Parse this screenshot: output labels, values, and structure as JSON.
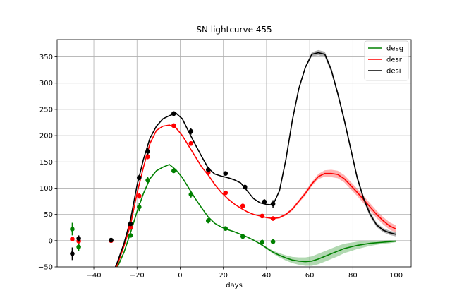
{
  "chart_data": {
    "type": "line",
    "title": "SN lightcurve 455",
    "xlabel": "days",
    "ylabel": "",
    "xlim": [
      -57,
      107
    ],
    "ylim": [
      -50,
      383
    ],
    "xticks": [
      -40,
      -20,
      0,
      20,
      40,
      60,
      80,
      100
    ],
    "yticks": [
      -50,
      0,
      50,
      100,
      150,
      200,
      250,
      300,
      350
    ],
    "grid": true,
    "legend_position": "top-right",
    "series": [
      {
        "name": "desg",
        "color": "#008000",
        "model": {
          "x": [
            -32,
            -29,
            -26,
            -23,
            -20,
            -17,
            -14,
            -11,
            -8,
            -5,
            -2,
            1,
            4,
            7,
            10,
            13,
            16,
            19,
            22,
            25,
            28,
            31,
            34,
            37,
            40,
            43,
            46,
            49,
            52,
            55,
            58,
            61,
            64,
            67,
            70,
            73,
            76,
            79,
            82,
            85,
            88,
            91,
            94,
            97,
            100
          ],
          "y": [
            -75,
            -50,
            -22,
            15,
            55,
            90,
            118,
            133,
            140,
            145,
            135,
            120,
            100,
            80,
            62,
            45,
            33,
            26,
            21,
            17,
            12,
            7,
            1,
            -6,
            -14,
            -22,
            -28,
            -33,
            -37,
            -39,
            -40,
            -39,
            -35,
            -30,
            -25,
            -20,
            -15,
            -12,
            -9,
            -7,
            -5,
            -4,
            -3,
            -2,
            -1
          ],
          "band": [
            0,
            0,
            0,
            0,
            0,
            0,
            0,
            0,
            0,
            0,
            0,
            0,
            0,
            0,
            0,
            0,
            0,
            0,
            0,
            0,
            0,
            0,
            0,
            1,
            2,
            3,
            4,
            5,
            6,
            7,
            8,
            9,
            10,
            10,
            10,
            10,
            9,
            8,
            7,
            6,
            5,
            4,
            3,
            3,
            2
          ]
        },
        "points": [
          {
            "x": -50,
            "y": 22,
            "err": 12
          },
          {
            "x": -47,
            "y": -12,
            "err": 8
          },
          {
            "x": -23,
            "y": 10,
            "err": 4
          },
          {
            "x": -19,
            "y": 64,
            "err": 8
          },
          {
            "x": -15,
            "y": 115,
            "err": 6
          },
          {
            "x": -3,
            "y": 133,
            "err": 4
          },
          {
            "x": 5,
            "y": 88,
            "err": 6
          },
          {
            "x": 13,
            "y": 38,
            "err": 5
          },
          {
            "x": 21,
            "y": 23,
            "err": 3
          },
          {
            "x": 29,
            "y": 8,
            "err": 3
          },
          {
            "x": 38,
            "y": -3,
            "err": 5
          },
          {
            "x": 43,
            "y": -2,
            "err": 5
          }
        ]
      },
      {
        "name": "desr",
        "color": "#ff0000",
        "model": {
          "x": [
            -32,
            -29,
            -26,
            -23,
            -20,
            -17,
            -14,
            -11,
            -8,
            -5,
            -2,
            1,
            4,
            7,
            10,
            13,
            16,
            19,
            22,
            25,
            28,
            31,
            34,
            37,
            40,
            43,
            46,
            49,
            52,
            55,
            58,
            61,
            64,
            67,
            70,
            73,
            76,
            79,
            82,
            85,
            88,
            91,
            94,
            97,
            100
          ],
          "y": [
            -70,
            -45,
            -10,
            30,
            90,
            140,
            185,
            210,
            218,
            220,
            215,
            200,
            180,
            160,
            140,
            125,
            107,
            92,
            80,
            70,
            62,
            55,
            50,
            47,
            44,
            42,
            44,
            50,
            60,
            75,
            90,
            108,
            122,
            128,
            128,
            126,
            118,
            105,
            92,
            78,
            64,
            50,
            38,
            28,
            22
          ],
          "band": [
            0,
            0,
            0,
            0,
            0,
            0,
            0,
            0,
            0,
            0,
            0,
            0,
            0,
            0,
            0,
            0,
            0,
            0,
            0,
            0,
            0,
            0,
            0,
            1,
            1,
            1,
            2,
            2,
            3,
            3,
            4,
            4,
            5,
            6,
            7,
            7,
            7,
            7,
            7,
            7,
            7,
            7,
            7,
            7,
            7
          ]
        },
        "points": [
          {
            "x": -50,
            "y": 3,
            "err": 4
          },
          {
            "x": -47,
            "y": -1,
            "err": 4
          },
          {
            "x": -32,
            "y": 0,
            "err": 3
          },
          {
            "x": -23,
            "y": 25,
            "err": 4
          },
          {
            "x": -19,
            "y": 85,
            "err": 5
          },
          {
            "x": -15,
            "y": 160,
            "err": 5
          },
          {
            "x": -3,
            "y": 219,
            "err": 4
          },
          {
            "x": 5,
            "y": 185,
            "err": 4
          },
          {
            "x": 13,
            "y": 130,
            "err": 5
          },
          {
            "x": 21,
            "y": 91,
            "err": 3
          },
          {
            "x": 29,
            "y": 66,
            "err": 3
          },
          {
            "x": 38,
            "y": 47,
            "err": 3
          },
          {
            "x": 43,
            "y": 42,
            "err": 3
          }
        ]
      },
      {
        "name": "desi",
        "color": "#000000",
        "model": {
          "x": [
            -32,
            -29,
            -26,
            -23,
            -20,
            -17,
            -14,
            -11,
            -8,
            -5,
            -2,
            1,
            4,
            7,
            10,
            13,
            16,
            19,
            22,
            25,
            28,
            31,
            34,
            37,
            40,
            43,
            46,
            49,
            52,
            55,
            58,
            61,
            64,
            67,
            70,
            73,
            76,
            79,
            82,
            85,
            88,
            91,
            94,
            97,
            100
          ],
          "y": [
            -70,
            -40,
            -5,
            40,
            105,
            155,
            195,
            218,
            232,
            238,
            243,
            232,
            207,
            183,
            160,
            138,
            127,
            123,
            120,
            116,
            110,
            95,
            80,
            72,
            69,
            68,
            95,
            155,
            230,
            290,
            330,
            355,
            358,
            355,
            325,
            280,
            230,
            175,
            120,
            80,
            50,
            30,
            20,
            15,
            12
          ],
          "band": [
            0,
            0,
            0,
            0,
            0,
            0,
            0,
            0,
            0,
            0,
            0,
            0,
            0,
            0,
            0,
            0,
            0,
            0,
            0,
            0,
            0,
            0,
            0,
            1,
            1,
            1,
            2,
            3,
            3,
            3,
            3,
            4,
            5,
            5,
            5,
            5,
            5,
            5,
            5,
            5,
            5,
            4,
            4,
            4,
            4
          ]
        },
        "points": [
          {
            "x": -50,
            "y": -25,
            "err": 12
          },
          {
            "x": -47,
            "y": 4,
            "err": 6
          },
          {
            "x": -32,
            "y": 1,
            "err": 3
          },
          {
            "x": -23,
            "y": 32,
            "err": 4
          },
          {
            "x": -19,
            "y": 120,
            "err": 5
          },
          {
            "x": -15,
            "y": 170,
            "err": 6
          },
          {
            "x": -3,
            "y": 242,
            "err": 4
          },
          {
            "x": 5,
            "y": 208,
            "err": 6
          },
          {
            "x": 13,
            "y": 135,
            "err": 5
          },
          {
            "x": 21,
            "y": 128,
            "err": 4
          },
          {
            "x": 30,
            "y": 102,
            "err": 4
          },
          {
            "x": 39,
            "y": 74,
            "err": 5
          },
          {
            "x": 43,
            "y": 70,
            "err": 7
          }
        ]
      }
    ]
  }
}
